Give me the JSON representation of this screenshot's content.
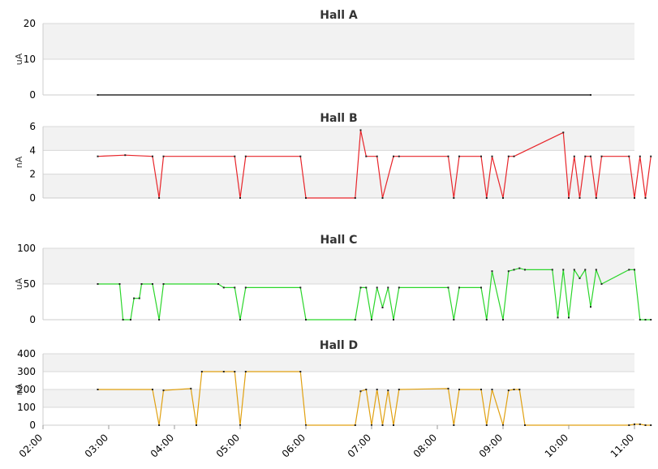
{
  "chart_data": [
    {
      "type": "line",
      "title": "Hall A",
      "ylabel": "uA",
      "ylim": [
        0,
        20
      ],
      "yticks": [
        0,
        10,
        20
      ],
      "grid": true,
      "color": "#000000",
      "series": [
        {
          "x": [
            "02:50",
            "10:20"
          ],
          "y": [
            0,
            0
          ]
        }
      ]
    },
    {
      "type": "line",
      "title": "Hall B",
      "ylabel": "nA",
      "ylim": [
        0,
        6
      ],
      "yticks": [
        0,
        2,
        4,
        6
      ],
      "grid": true,
      "color": "#e8252a",
      "series": [
        {
          "x": [
            "02:50",
            "03:15",
            "03:40",
            "03:46",
            "03:50",
            "04:55",
            "05:00",
            "05:05",
            "05:55",
            "06:00",
            "06:45",
            "06:50",
            "06:55",
            "07:05",
            "07:10",
            "07:20",
            "07:25",
            "08:10",
            "08:15",
            "08:20",
            "08:40",
            "08:45",
            "08:50",
            "09:00",
            "09:05",
            "09:10",
            "09:55",
            "10:00",
            "10:05",
            "10:10",
            "10:15",
            "10:20",
            "10:25",
            "10:30",
            "10:55",
            "11:00",
            "11:05",
            "11:10",
            "11:15"
          ],
          "y": [
            3.5,
            3.6,
            3.5,
            0,
            3.5,
            3.5,
            0,
            3.5,
            3.5,
            0,
            0,
            5.7,
            3.5,
            3.5,
            0,
            3.5,
            3.5,
            3.5,
            0,
            3.5,
            3.5,
            0,
            3.5,
            0,
            3.5,
            3.5,
            5.5,
            0,
            3.5,
            0,
            3.5,
            3.5,
            0,
            3.5,
            3.5,
            0,
            3.5,
            0,
            3.5
          ]
        }
      ]
    },
    {
      "type": "line",
      "title": "Hall C",
      "ylabel": "uA",
      "ylim": [
        0,
        100
      ],
      "yticks": [
        0,
        50,
        100
      ],
      "grid": true,
      "color": "#2bd62b",
      "series": [
        {
          "x": [
            "02:50",
            "03:10",
            "03:13",
            "03:20",
            "03:23",
            "03:28",
            "03:30",
            "03:40",
            "03:46",
            "03:50",
            "04:40",
            "04:45",
            "04:55",
            "05:00",
            "05:05",
            "05:55",
            "06:00",
            "06:45",
            "06:50",
            "06:55",
            "07:00",
            "07:05",
            "07:10",
            "07:15",
            "07:20",
            "07:25",
            "08:10",
            "08:15",
            "08:20",
            "08:40",
            "08:45",
            "08:50",
            "09:00",
            "09:05",
            "09:10",
            "09:15",
            "09:20",
            "09:45",
            "09:50",
            "09:55",
            "10:00",
            "10:05",
            "10:10",
            "10:15",
            "10:20",
            "10:25",
            "10:30",
            "10:55",
            "11:00",
            "11:05",
            "11:10",
            "11:15"
          ],
          "y": [
            50,
            50,
            0,
            0,
            30,
            30,
            50,
            50,
            0,
            50,
            50,
            45,
            45,
            0,
            45,
            45,
            0,
            0,
            45,
            45,
            0,
            45,
            17,
            45,
            0,
            45,
            45,
            0,
            45,
            45,
            0,
            68,
            0,
            68,
            70,
            72,
            70,
            70,
            3,
            70,
            3,
            70,
            58,
            70,
            18,
            70,
            50,
            70,
            70,
            0,
            0,
            0
          ]
        }
      ]
    },
    {
      "type": "line",
      "title": "Hall D",
      "ylabel": "nA",
      "ylim": [
        0,
        400
      ],
      "yticks": [
        0,
        100,
        200,
        300,
        400
      ],
      "grid": true,
      "color": "#e0a010",
      "series": [
        {
          "x": [
            "02:50",
            "03:40",
            "03:46",
            "03:50",
            "04:15",
            "04:20",
            "04:25",
            "04:45",
            "04:55",
            "05:00",
            "05:05",
            "05:55",
            "06:00",
            "06:45",
            "06:50",
            "06:55",
            "07:00",
            "07:05",
            "07:10",
            "07:15",
            "07:20",
            "07:25",
            "08:10",
            "08:15",
            "08:20",
            "08:40",
            "08:45",
            "08:50",
            "09:00",
            "09:05",
            "09:10",
            "09:15",
            "09:20",
            "10:55",
            "11:00",
            "11:05",
            "11:10",
            "11:15"
          ],
          "y": [
            200,
            200,
            0,
            195,
            205,
            0,
            300,
            300,
            300,
            0,
            300,
            300,
            0,
            0,
            190,
            200,
            0,
            200,
            0,
            195,
            0,
            200,
            205,
            0,
            200,
            200,
            0,
            200,
            0,
            195,
            200,
            200,
            0,
            0,
            5,
            5,
            0,
            0
          ]
        }
      ]
    }
  ],
  "x_axis": {
    "type": "time",
    "range": [
      "02:00",
      "11:00"
    ],
    "ticks": [
      "02:00",
      "03:00",
      "04:00",
      "05:00",
      "06:00",
      "07:00",
      "08:00",
      "09:00",
      "10:00",
      "11:00"
    ]
  }
}
